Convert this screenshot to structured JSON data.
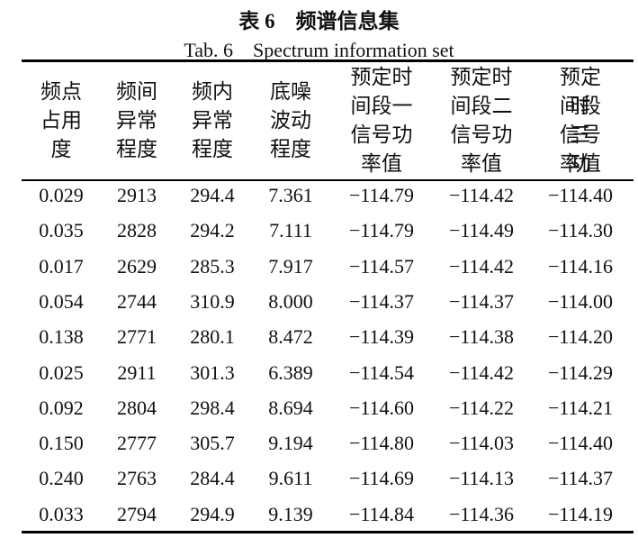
{
  "title": "表 6　频谱信息集",
  "subtitle": "Tab. 6　Spectrum information set",
  "table": {
    "headers": [
      [
        "频点",
        "占用",
        "度"
      ],
      [
        "频间",
        "异常",
        "程度"
      ],
      [
        "频内",
        "异常",
        "程度"
      ],
      [
        "底噪",
        "波动",
        "程度"
      ],
      [
        "预定时",
        "间段一",
        "信号功",
        "率值"
      ],
      [
        "预定时",
        "间段二",
        "信号功",
        "率值"
      ],
      [
        "预定时",
        "间段三",
        "信号功",
        "率值"
      ]
    ],
    "rows": [
      [
        "0.029",
        "2913",
        "294.4",
        "7.361",
        "−114.79",
        "−114.42",
        "−114.40"
      ],
      [
        "0.035",
        "2828",
        "294.2",
        "7.111",
        "−114.79",
        "−114.49",
        "−114.30"
      ],
      [
        "0.017",
        "2629",
        "285.3",
        "7.917",
        "−114.57",
        "−114.42",
        "−114.16"
      ],
      [
        "0.054",
        "2744",
        "310.9",
        "8.000",
        "−114.37",
        "−114.37",
        "−114.00"
      ],
      [
        "0.138",
        "2771",
        "280.1",
        "8.472",
        "−114.39",
        "−114.38",
        "−114.20"
      ],
      [
        "0.025",
        "2911",
        "301.3",
        "6.389",
        "−114.54",
        "−114.42",
        "−114.29"
      ],
      [
        "0.092",
        "2804",
        "298.4",
        "8.694",
        "−114.60",
        "−114.22",
        "−114.21"
      ],
      [
        "0.150",
        "2777",
        "305.7",
        "9.194",
        "−114.80",
        "−114.03",
        "−114.40"
      ],
      [
        "0.240",
        "2763",
        "284.4",
        "9.611",
        "−114.69",
        "−114.13",
        "−114.37"
      ],
      [
        "0.033",
        "2794",
        "294.9",
        "9.139",
        "−114.84",
        "−114.36",
        "−114.19"
      ]
    ]
  }
}
